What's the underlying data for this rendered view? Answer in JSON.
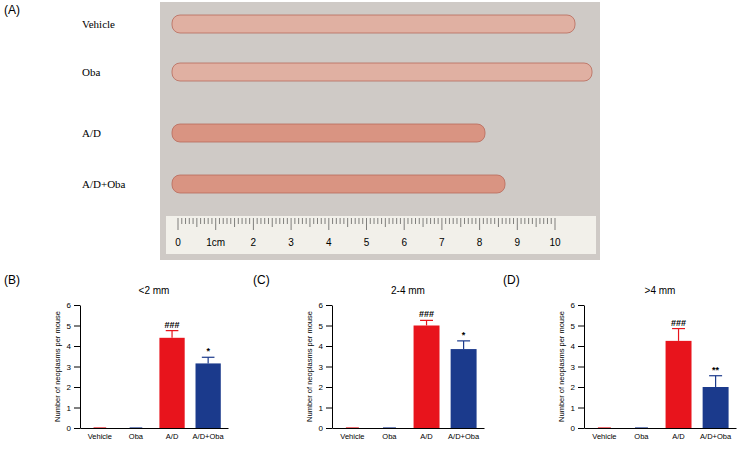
{
  "photo": {
    "label": "(A)",
    "rows": [
      "Vehicle",
      "Oba",
      "A/D",
      "A/D+Oba"
    ],
    "ruler_labels": [
      "0",
      "1cm",
      "2",
      "3",
      "4",
      "5",
      "6",
      "7",
      "8",
      "9",
      "10"
    ]
  },
  "chart_data": [
    {
      "type": "bar",
      "panel": "(B)",
      "title": "<2 mm",
      "y_label": "Number of neoplasms per mouse",
      "categories": [
        "Vehicle",
        "Oba",
        "A/D",
        "A/D+Oba"
      ],
      "values": [
        0,
        0,
        4.4,
        3.15
      ],
      "errors": [
        0,
        0,
        0.35,
        0.3
      ],
      "annotations": [
        null,
        null,
        "###",
        "*"
      ],
      "colors": [
        "#e8141c",
        "#1b3a8c",
        "#e8141c",
        "#1b3a8c"
      ],
      "ylim": [
        0,
        6
      ],
      "yticks": [
        0,
        1,
        2,
        3,
        4,
        5,
        6
      ]
    },
    {
      "type": "bar",
      "panel": "(C)",
      "title": "2-4 mm",
      "y_label": "Number of neoplasms per mouse",
      "categories": [
        "Vehicle",
        "Oba",
        "A/D",
        "A/D+Oba"
      ],
      "values": [
        0,
        0,
        5.0,
        3.85
      ],
      "errors": [
        0,
        0,
        0.25,
        0.4
      ],
      "annotations": [
        null,
        null,
        "###",
        "*"
      ],
      "colors": [
        "#e8141c",
        "#1b3a8c",
        "#e8141c",
        "#1b3a8c"
      ],
      "ylim": [
        0,
        6
      ],
      "yticks": [
        0,
        1,
        2,
        3,
        4,
        5,
        6
      ]
    },
    {
      "type": "bar",
      "panel": "(D)",
      "title": ">4 mm",
      "y_label": "Number of neoplasms per mouse",
      "categories": [
        "Vehicle",
        "Oba",
        "A/D",
        "A/D+Oba"
      ],
      "values": [
        0,
        0,
        4.25,
        2.0
      ],
      "errors": [
        0,
        0,
        0.6,
        0.55
      ],
      "annotations": [
        null,
        null,
        "###",
        "**"
      ],
      "colors": [
        "#e8141c",
        "#1b3a8c",
        "#e8141c",
        "#1b3a8c"
      ],
      "ylim": [
        0,
        6
      ],
      "yticks": [
        0,
        1,
        2,
        3,
        4,
        5,
        6
      ]
    }
  ]
}
